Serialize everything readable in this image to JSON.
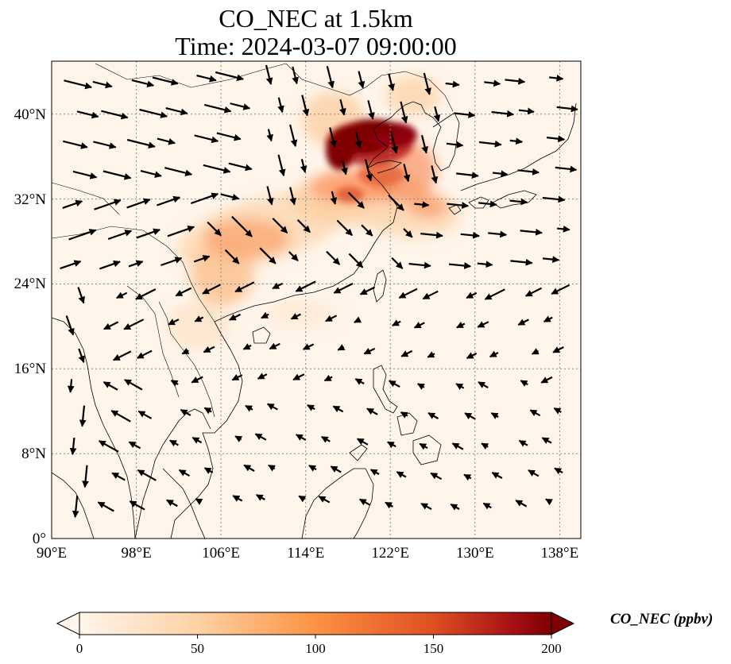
{
  "title_line1": "CO_NEC at 1.5km",
  "title_line2": "Time: 2024-03-07 09:00:00",
  "map": {
    "lon_range": [
      90,
      140
    ],
    "lat_range": [
      0,
      45
    ],
    "lon_ticks": [
      "90°E",
      "98°E",
      "106°E",
      "114°E",
      "122°E",
      "130°E",
      "138°E"
    ],
    "lat_ticks": [
      "0°",
      "8°N",
      "16°N",
      "24°N",
      "32°N",
      "40°N"
    ],
    "gridlines": "dotted",
    "background_color": "#fff5eb"
  },
  "colorbar": {
    "label": "CO_NEC (ppbv)",
    "ticks": [
      "0",
      "50",
      "100",
      "150",
      "200"
    ],
    "range": [
      0,
      200
    ],
    "extend": "both",
    "colors": [
      "#fff5eb",
      "#fdd2a5",
      "#fd9243",
      "#df4f21",
      "#a50f15",
      "#7f0000"
    ]
  }
}
